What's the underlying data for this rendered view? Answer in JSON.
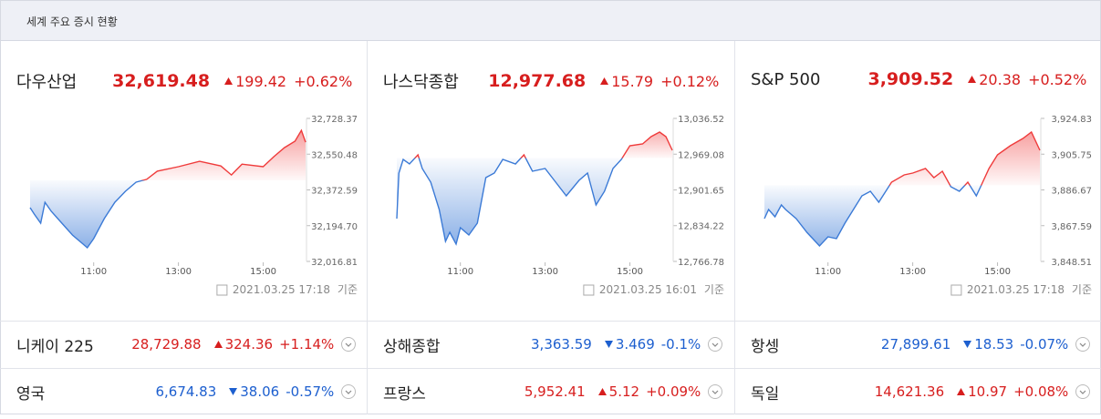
{
  "header": {
    "title": "세계 주요 증시 현황"
  },
  "main_indices": [
    {
      "name": "다우산업",
      "price": {
        "value": 32619.48,
        "label": "32,619.48"
      },
      "change": {
        "value": 199.42,
        "label": "199.42"
      },
      "change_pct": "+0.62%",
      "direction": "up",
      "chart": {
        "type": "line",
        "xlim": [
          9.5,
          16
        ],
        "ylim": [
          32016.81,
          32728.37
        ],
        "xticks": [
          {
            "value": 11,
            "label": "11:00"
          },
          {
            "value": 13,
            "label": "13:00"
          },
          {
            "value": 15,
            "label": "15:00"
          }
        ],
        "yticks": [
          {
            "value": 32728.37,
            "label": "32,728.37"
          },
          {
            "value": 32550.48,
            "label": "32,550.48"
          },
          {
            "value": 32372.59,
            "label": "32,372.59"
          },
          {
            "value": 32194.7,
            "label": "32,194.70"
          },
          {
            "value": 32016.81,
            "label": "32,016.81"
          }
        ],
        "x": [
          9.5,
          9.6,
          9.75,
          9.85,
          10,
          10.25,
          10.5,
          10.75,
          10.85,
          11,
          11.25,
          11.5,
          11.75,
          12,
          12.25,
          12.5,
          13,
          13.5,
          14,
          14.25,
          14.5,
          15,
          15.25,
          15.5,
          15.75,
          15.9,
          16
        ],
        "values": [
          32284,
          32252,
          32207,
          32311,
          32266,
          32207,
          32148,
          32103,
          32085,
          32130,
          32230,
          32311,
          32366,
          32411,
          32425,
          32466,
          32488,
          32515,
          32492,
          32447,
          32501,
          32488,
          32538,
          32583,
          32615,
          32669,
          32610
        ],
        "up_color": "#ef3b3b",
        "down_color": "#3b7ad6",
        "timestamp": "2021.03.25 17:18",
        "basis": "기준"
      }
    },
    {
      "name": "나스닥종합",
      "price": {
        "value": 12977.68,
        "label": "12,977.68"
      },
      "change": {
        "value": 15.79,
        "label": "15.79"
      },
      "change_pct": "+0.12%",
      "direction": "up",
      "chart": {
        "type": "line",
        "xlim": [
          9.5,
          16
        ],
        "ylim": [
          12766.78,
          13036.52
        ],
        "xticks": [
          {
            "value": 11,
            "label": "11:00"
          },
          {
            "value": 13,
            "label": "13:00"
          },
          {
            "value": 15,
            "label": "15:00"
          }
        ],
        "yticks": [
          {
            "value": 13036.52,
            "label": "13,036.52"
          },
          {
            "value": 12969.08,
            "label": "12,969.08"
          },
          {
            "value": 12901.65,
            "label": "12,901.65"
          },
          {
            "value": 12834.22,
            "label": "12,834.22"
          },
          {
            "value": 12766.78,
            "label": "12,766.78"
          }
        ],
        "x": [
          9.5,
          9.55,
          9.65,
          9.8,
          10,
          10.1,
          10.3,
          10.5,
          10.65,
          10.75,
          10.9,
          11,
          11.2,
          11.4,
          11.6,
          11.8,
          12,
          12.3,
          12.5,
          12.7,
          13,
          13.25,
          13.5,
          13.8,
          14,
          14.2,
          14.4,
          14.6,
          14.8,
          15,
          15.3,
          15.5,
          15.7,
          15.85,
          16
        ],
        "values": [
          12847.5,
          12933.4,
          12959.2,
          12950.6,
          12967.8,
          12942.0,
          12916.2,
          12864.7,
          12804.6,
          12821.7,
          12799.4,
          12830.3,
          12816.6,
          12838.9,
          12924.8,
          12933.4,
          12959.2,
          12950.6,
          12967.8,
          12936.9,
          12942.0,
          12916.2,
          12890.5,
          12919.7,
          12933.4,
          12873.3,
          12899.1,
          12942.0,
          12959.2,
          12985.0,
          12988.4,
          13002.1,
          13010.7,
          13002.1,
          12976.4
        ],
        "up_color": "#ef3b3b",
        "down_color": "#3b7ad6",
        "timestamp": "2021.03.25 16:01",
        "basis": "기준"
      }
    },
    {
      "name": "S&P 500",
      "price": {
        "value": 3909.52,
        "label": "3,909.52"
      },
      "change": {
        "value": 20.38,
        "label": "20.38"
      },
      "change_pct": "+0.52%",
      "direction": "up",
      "chart": {
        "type": "line",
        "xlim": [
          9.5,
          16
        ],
        "ylim": [
          3848.51,
          3924.83
        ],
        "xticks": [
          {
            "value": 11,
            "label": "11:00"
          },
          {
            "value": 13,
            "label": "13:00"
          },
          {
            "value": 15,
            "label": "15:00"
          }
        ],
        "yticks": [
          {
            "value": 3924.83,
            "label": "3,924.83"
          },
          {
            "value": 3905.75,
            "label": "3,905.75"
          },
          {
            "value": 3886.67,
            "label": "3,886.67"
          },
          {
            "value": 3867.59,
            "label": "3,867.59"
          },
          {
            "value": 3848.51,
            "label": "3,848.51"
          }
        ],
        "x": [
          9.5,
          9.6,
          9.75,
          9.9,
          10,
          10.25,
          10.5,
          10.7,
          10.8,
          11,
          11.2,
          11.4,
          11.6,
          11.8,
          12,
          12.2,
          12.5,
          12.8,
          13,
          13.3,
          13.5,
          13.7,
          13.9,
          14.1,
          14.3,
          14.5,
          14.6,
          14.8,
          15,
          15.3,
          15.6,
          15.8,
          16
        ],
        "values": [
          3871.36,
          3876.22,
          3872.33,
          3878.65,
          3876.22,
          3871.36,
          3864.07,
          3859.21,
          3856.78,
          3861.64,
          3860.66,
          3868.93,
          3876.22,
          3883.51,
          3885.94,
          3880.11,
          3890.8,
          3894.69,
          3895.66,
          3898.09,
          3893.23,
          3896.64,
          3888.37,
          3885.94,
          3890.8,
          3883.51,
          3888.37,
          3898.09,
          3905.39,
          3910.25,
          3914.14,
          3917.54,
          3907.82
        ],
        "up_color": "#ef3b3b",
        "down_color": "#3b7ad6",
        "timestamp": "2021.03.25 17:18",
        "basis": "기준"
      }
    }
  ],
  "other_indices": [
    {
      "name": "니케이 225",
      "price": "28,729.88",
      "change": "324.36",
      "change_pct": "+1.14%",
      "direction": "up"
    },
    {
      "name": "상해종합",
      "price": "3,363.59",
      "change": "3.469",
      "change_pct": "-0.1%",
      "direction": "down"
    },
    {
      "name": "항셍",
      "price": "27,899.61",
      "change": "18.53",
      "change_pct": "-0.07%",
      "direction": "down"
    },
    {
      "name": "영국",
      "price": "6,674.83",
      "change": "38.06",
      "change_pct": "-0.57%",
      "direction": "down"
    },
    {
      "name": "프랑스",
      "price": "5,952.41",
      "change": "5.12",
      "change_pct": "+0.09%",
      "direction": "up"
    },
    {
      "name": "독일",
      "price": "14,621.36",
      "change": "10.97",
      "change_pct": "+0.08%",
      "direction": "up"
    }
  ]
}
